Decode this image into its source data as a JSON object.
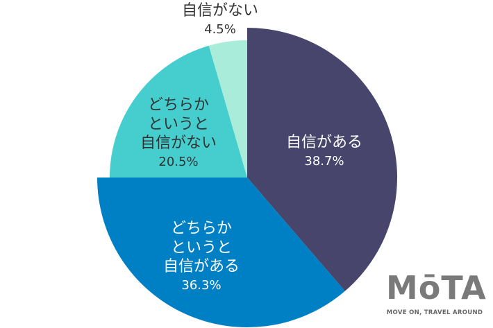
{
  "chart_data": {
    "type": "pie",
    "title": "",
    "start_angle": "12 o'clock, clockwise",
    "slices": [
      {
        "label": "自信がある",
        "value": 38.7,
        "display": "38.7%",
        "color": "#47456c",
        "text_color": "#ffffff"
      },
      {
        "label": "どちらかというと自信がある",
        "value": 36.3,
        "display": "36.3%",
        "color": "#0080c4",
        "text_color": "#ffffff"
      },
      {
        "label": "どちらかというと自信がない",
        "value": 20.5,
        "display": "20.5%",
        "color": "#46cdce",
        "text_color": "#333333"
      },
      {
        "label": "自信がない",
        "value": 4.5,
        "display": "4.5%",
        "color": "#a8ecd9",
        "text_color": "#333333"
      }
    ],
    "legend": "none (labels drawn on slices)"
  },
  "labels": {
    "s0": {
      "line1": "自信がある",
      "pct": "38.7%"
    },
    "s1": {
      "line1": "どちらか",
      "line2": "というと",
      "line3": "自信がある",
      "pct": "36.3%"
    },
    "s2": {
      "line1": "どちらか",
      "line2": "というと",
      "line3": "自信がない",
      "pct": "20.5%"
    },
    "s3": {
      "line1": "自信がない",
      "pct": "4.5%"
    }
  },
  "watermark": {
    "brand": "MōTA",
    "tagline": "MOVE ON, TRAVEL AROUND"
  }
}
